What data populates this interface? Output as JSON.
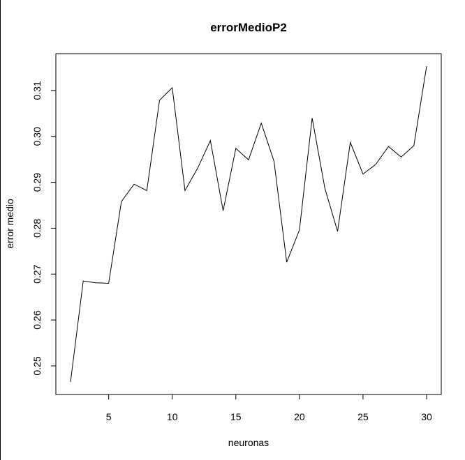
{
  "chart_data": {
    "type": "line",
    "title": "errorMedioP2",
    "xlabel": "neuronas",
    "ylabel": "error medio",
    "xlim": [
      2,
      30
    ],
    "ylim": [
      0.2465,
      0.3153
    ],
    "xticks": [
      5,
      10,
      15,
      20,
      25,
      30
    ],
    "yticks": [
      0.25,
      0.26,
      0.27,
      0.28,
      0.29,
      0.3,
      0.31
    ],
    "xtick_labels": [
      "5",
      "10",
      "15",
      "20",
      "25",
      "30"
    ],
    "ytick_labels": [
      "0.25",
      "0.26",
      "0.27",
      "0.28",
      "0.29",
      "0.30",
      "0.31"
    ],
    "grid": false,
    "x": [
      2,
      3,
      4,
      5,
      6,
      7,
      8,
      9,
      10,
      11,
      12,
      13,
      14,
      15,
      16,
      17,
      18,
      19,
      20,
      21,
      22,
      23,
      24,
      25,
      26,
      27,
      28,
      29,
      30
    ],
    "y": [
      0.2465,
      0.2685,
      0.2681,
      0.268,
      0.2858,
      0.2896,
      0.2882,
      0.3079,
      0.3106,
      0.2882,
      0.2931,
      0.2991,
      0.2838,
      0.2974,
      0.2949,
      0.3029,
      0.2946,
      0.2726,
      0.2796,
      0.304,
      0.2887,
      0.2793,
      0.2987,
      0.2918,
      0.2939,
      0.2978,
      0.2955,
      0.298,
      0.3153
    ]
  }
}
